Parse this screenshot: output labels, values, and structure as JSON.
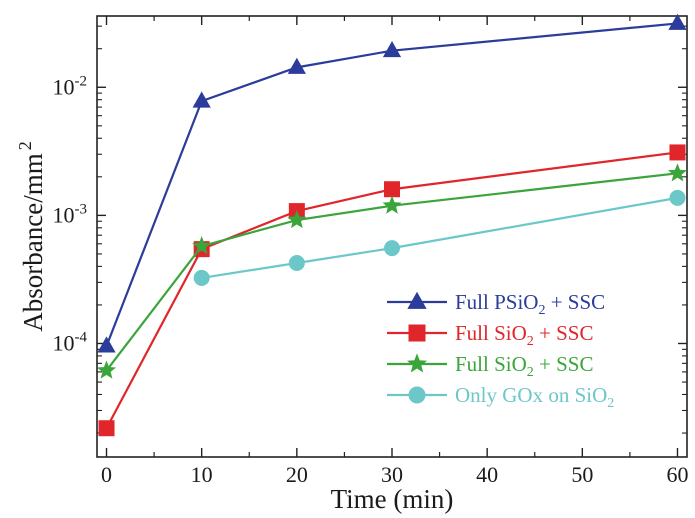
{
  "chart_data": {
    "type": "line",
    "xlabel": "Time (min)",
    "ylabel": "Absorbance/mm",
    "ylabel_sup": "2",
    "xlim": [
      -1,
      61
    ],
    "ylim": [
      1.3e-05,
      0.036
    ],
    "yscale": "log",
    "x_ticks": [
      0,
      10,
      20,
      30,
      40,
      50,
      60
    ],
    "x_tick_labels": [
      "0",
      "10",
      "20",
      "30",
      "40",
      "50",
      "60"
    ],
    "y_ticks": [
      0.0001,
      0.001,
      0.01
    ],
    "y_tick_labels": [
      {
        "base": "10",
        "exp": "-4"
      },
      {
        "base": "10",
        "exp": "-3"
      },
      {
        "base": "10",
        "exp": "-2"
      }
    ],
    "grid": false,
    "legend_position": "bottom-right",
    "series": [
      {
        "name": "Full PSiO",
        "name_sub": "2",
        "name_suffix": " + SSC",
        "color": "#2b3c9a",
        "marker": "triangle",
        "x": [
          0,
          10,
          20,
          30,
          60
        ],
        "y": [
          9.55e-05,
          0.0078,
          0.0143,
          0.0193,
          0.0315
        ]
      },
      {
        "name": "Full SiO",
        "name_sub": "2",
        "name_suffix": " + SSC",
        "color": "#e0262a",
        "marker": "square",
        "x": [
          0,
          10,
          20,
          30,
          60
        ],
        "y": [
          2.18e-05,
          0.000545,
          0.00108,
          0.0016,
          0.0031
        ]
      },
      {
        "name": "Full SiO",
        "name_sub": "2",
        "name_suffix": " + SSC",
        "color": "#3aa53a",
        "marker": "star",
        "x": [
          0,
          10,
          20,
          30,
          60
        ],
        "y": [
          6.15e-05,
          0.000575,
          0.00092,
          0.00119,
          0.00213
        ]
      },
      {
        "name": "Only GOx on SiO",
        "name_sub": "2",
        "name_suffix": "",
        "color": "#6cc7c9",
        "marker": "circle",
        "x": [
          10,
          20,
          30,
          60
        ],
        "y": [
          0.000325,
          0.000425,
          0.000555,
          0.00137
        ]
      }
    ]
  }
}
